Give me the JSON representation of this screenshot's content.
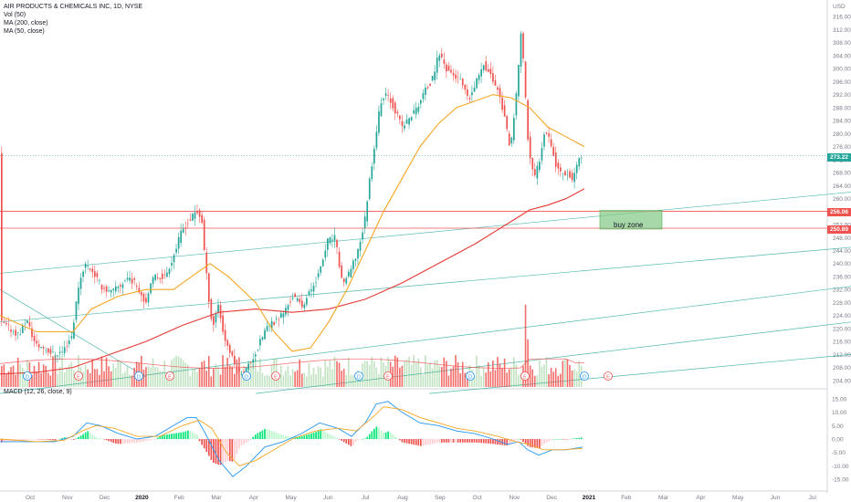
{
  "chart_data": {
    "type": "candlestick",
    "symbol_title": "AIR PRODUCTS & CHEMICALS INC, 1D, NYSE",
    "indicators": [
      "Vol (50)",
      "MA (200, close)",
      "MA (50, close)"
    ],
    "currency_label": "USD",
    "price_axis": {
      "ylim": [
        202,
        320
      ],
      "ticks": [
        "316.00",
        "312.00",
        "308.00",
        "304.00",
        "300.00",
        "296.00",
        "292.00",
        "288.00",
        "284.00",
        "280.00",
        "276.00",
        "272.00",
        "268.00",
        "264.00",
        "260.00",
        "256.00",
        "252.00",
        "248.00",
        "244.00",
        "240.00",
        "236.00",
        "232.00",
        "228.00",
        "224.00",
        "220.00",
        "216.00",
        "212.00",
        "208.00",
        "204.00"
      ]
    },
    "macd_axis": {
      "label": "MACD (12, 26, close, 9)",
      "ylim": [
        -18,
        18
      ],
      "ticks": [
        "15.00",
        "10.00",
        "5.00",
        "0.00",
        "-5.00",
        "-10.00",
        "-15.00"
      ]
    },
    "x_axis": {
      "ticks": [
        "Oct",
        "Nov",
        "Dec",
        "2020",
        "Feb",
        "Mar",
        "Apr",
        "May",
        "Jun",
        "Jul",
        "Aug",
        "Sep",
        "Oct",
        "Nov",
        "Dec",
        "2021",
        "Feb",
        "Mar",
        "Apr",
        "May",
        "Jun",
        "Jul"
      ],
      "bold_ticks": [
        "2020",
        "2021"
      ]
    },
    "last_price": "273.22",
    "horizontal_levels": [
      {
        "label": "256.06",
        "value": 256.06,
        "color": "#ef5350"
      },
      {
        "label": "250.89",
        "value": 250.89,
        "color": "#ef5350"
      }
    ],
    "annotation": {
      "text": "buy zone",
      "price_top": 256.06,
      "price_bottom": 250.89,
      "color": "#81c784"
    },
    "close_path": [
      {
        "x": 0,
        "y": 222
      },
      {
        "x": 10,
        "y": 220
      },
      {
        "x": 20,
        "y": 218
      },
      {
        "x": 28,
        "y": 223
      },
      {
        "x": 38,
        "y": 215
      },
      {
        "x": 48,
        "y": 214
      },
      {
        "x": 58,
        "y": 212
      },
      {
        "x": 68,
        "y": 213
      },
      {
        "x": 78,
        "y": 218
      },
      {
        "x": 85,
        "y": 233
      },
      {
        "x": 92,
        "y": 240
      },
      {
        "x": 100,
        "y": 238
      },
      {
        "x": 110,
        "y": 233
      },
      {
        "x": 120,
        "y": 231
      },
      {
        "x": 130,
        "y": 233
      },
      {
        "x": 140,
        "y": 236
      },
      {
        "x": 150,
        "y": 233
      },
      {
        "x": 158,
        "y": 228
      },
      {
        "x": 168,
        "y": 236
      },
      {
        "x": 180,
        "y": 236
      },
      {
        "x": 190,
        "y": 243
      },
      {
        "x": 198,
        "y": 250
      },
      {
        "x": 206,
        "y": 253
      },
      {
        "x": 214,
        "y": 256
      },
      {
        "x": 220,
        "y": 254
      },
      {
        "x": 224,
        "y": 240
      },
      {
        "x": 228,
        "y": 229
      },
      {
        "x": 232,
        "y": 220
      },
      {
        "x": 238,
        "y": 228
      },
      {
        "x": 244,
        "y": 218
      },
      {
        "x": 252,
        "y": 212
      },
      {
        "x": 260,
        "y": 206
      },
      {
        "x": 270,
        "y": 208
      },
      {
        "x": 280,
        "y": 213
      },
      {
        "x": 290,
        "y": 220
      },
      {
        "x": 300,
        "y": 222
      },
      {
        "x": 310,
        "y": 225
      },
      {
        "x": 320,
        "y": 230
      },
      {
        "x": 330,
        "y": 227
      },
      {
        "x": 340,
        "y": 232
      },
      {
        "x": 350,
        "y": 238
      },
      {
        "x": 358,
        "y": 247
      },
      {
        "x": 366,
        "y": 248
      },
      {
        "x": 374,
        "y": 234
      },
      {
        "x": 382,
        "y": 237
      },
      {
        "x": 390,
        "y": 243
      },
      {
        "x": 398,
        "y": 252
      },
      {
        "x": 404,
        "y": 266
      },
      {
        "x": 410,
        "y": 278
      },
      {
        "x": 416,
        "y": 290
      },
      {
        "x": 424,
        "y": 292
      },
      {
        "x": 432,
        "y": 287
      },
      {
        "x": 440,
        "y": 282
      },
      {
        "x": 448,
        "y": 285
      },
      {
        "x": 456,
        "y": 288
      },
      {
        "x": 464,
        "y": 293
      },
      {
        "x": 472,
        "y": 296
      },
      {
        "x": 480,
        "y": 305
      },
      {
        "x": 488,
        "y": 300
      },
      {
        "x": 496,
        "y": 298
      },
      {
        "x": 504,
        "y": 296
      },
      {
        "x": 512,
        "y": 290
      },
      {
        "x": 520,
        "y": 295
      },
      {
        "x": 528,
        "y": 302
      },
      {
        "x": 536,
        "y": 298
      },
      {
        "x": 544,
        "y": 294
      },
      {
        "x": 552,
        "y": 285
      },
      {
        "x": 558,
        "y": 274
      },
      {
        "x": 564,
        "y": 290
      },
      {
        "x": 570,
        "y": 312
      },
      {
        "x": 574,
        "y": 295
      },
      {
        "x": 578,
        "y": 275
      },
      {
        "x": 584,
        "y": 266
      },
      {
        "x": 590,
        "y": 272
      },
      {
        "x": 596,
        "y": 282
      },
      {
        "x": 602,
        "y": 278
      },
      {
        "x": 608,
        "y": 270
      },
      {
        "x": 614,
        "y": 268
      },
      {
        "x": 620,
        "y": 268
      },
      {
        "x": 626,
        "y": 266
      },
      {
        "x": 632,
        "y": 271
      },
      {
        "x": 638,
        "y": 273.22
      }
    ],
    "ma50": [
      {
        "x": 0,
        "y": 224
      },
      {
        "x": 40,
        "y": 219
      },
      {
        "x": 80,
        "y": 219
      },
      {
        "x": 100,
        "y": 226
      },
      {
        "x": 130,
        "y": 230
      },
      {
        "x": 160,
        "y": 232
      },
      {
        "x": 190,
        "y": 232
      },
      {
        "x": 220,
        "y": 238
      },
      {
        "x": 230,
        "y": 240
      },
      {
        "x": 250,
        "y": 236
      },
      {
        "x": 280,
        "y": 228
      },
      {
        "x": 300,
        "y": 219
      },
      {
        "x": 320,
        "y": 213
      },
      {
        "x": 340,
        "y": 214
      },
      {
        "x": 360,
        "y": 222
      },
      {
        "x": 380,
        "y": 232
      },
      {
        "x": 400,
        "y": 244
      },
      {
        "x": 420,
        "y": 256
      },
      {
        "x": 440,
        "y": 266
      },
      {
        "x": 460,
        "y": 276
      },
      {
        "x": 480,
        "y": 283
      },
      {
        "x": 500,
        "y": 288
      },
      {
        "x": 520,
        "y": 290
      },
      {
        "x": 540,
        "y": 292
      },
      {
        "x": 560,
        "y": 291
      },
      {
        "x": 580,
        "y": 288
      },
      {
        "x": 600,
        "y": 282
      },
      {
        "x": 620,
        "y": 279
      },
      {
        "x": 640,
        "y": 276
      }
    ],
    "ma200": [
      {
        "x": 0,
        "y": 206
      },
      {
        "x": 40,
        "y": 206.5
      },
      {
        "x": 80,
        "y": 208
      },
      {
        "x": 120,
        "y": 212
      },
      {
        "x": 160,
        "y": 216
      },
      {
        "x": 200,
        "y": 221
      },
      {
        "x": 240,
        "y": 225
      },
      {
        "x": 280,
        "y": 226
      },
      {
        "x": 320,
        "y": 225
      },
      {
        "x": 360,
        "y": 226
      },
      {
        "x": 400,
        "y": 229
      },
      {
        "x": 440,
        "y": 234
      },
      {
        "x": 480,
        "y": 240
      },
      {
        "x": 520,
        "y": 246
      },
      {
        "x": 560,
        "y": 253
      },
      {
        "x": 580,
        "y": 256.5
      },
      {
        "x": 600,
        "y": 258
      },
      {
        "x": 620,
        "y": 260
      },
      {
        "x": 640,
        "y": 263
      }
    ],
    "trendlines": [
      {
        "x1": 0,
        "y1": 237,
        "x2": 932,
        "y2": 262,
        "color": "#26a69a"
      },
      {
        "x1": 0,
        "y1": 222,
        "x2": 932,
        "y2": 245,
        "color": "#26a69a"
      },
      {
        "x1": 0,
        "y1": 200,
        "x2": 932,
        "y2": 233,
        "color": "#26a69a"
      },
      {
        "x1": 0,
        "y1": 232,
        "x2": 160,
        "y2": 205,
        "color": "#26a69a"
      },
      {
        "x1": 280,
        "y1": 200,
        "x2": 932,
        "y2": 222,
        "color": "#26a69a"
      },
      {
        "x1": 470,
        "y1": 200,
        "x2": 932,
        "y2": 212,
        "color": "#26a69a"
      }
    ],
    "volume_spikes": [
      {
        "x": 574,
        "h": 0.95
      },
      {
        "x": 578,
        "h": 0.55
      },
      {
        "x": 410,
        "h": 0.3
      },
      {
        "x": 620,
        "h": 0.32
      },
      {
        "x": 400,
        "h": 0.3
      },
      {
        "x": 250,
        "h": 0.25
      }
    ],
    "event_markers": [
      {
        "x": 30,
        "type": "D"
      },
      {
        "x": 86,
        "type": "E"
      },
      {
        "x": 152,
        "type": "D"
      },
      {
        "x": 186,
        "type": "E"
      },
      {
        "x": 270,
        "type": "D"
      },
      {
        "x": 302,
        "type": "E"
      },
      {
        "x": 393,
        "type": "D"
      },
      {
        "x": 425,
        "type": "E"
      },
      {
        "x": 515,
        "type": "D"
      },
      {
        "x": 575,
        "type": "E"
      },
      {
        "x": 640,
        "type": "D"
      },
      {
        "x": 666,
        "type": "E"
      }
    ],
    "macd_path": [
      {
        "x": 0,
        "y": -1
      },
      {
        "x": 30,
        "y": -1
      },
      {
        "x": 60,
        "y": -1
      },
      {
        "x": 80,
        "y": 1
      },
      {
        "x": 95,
        "y": 6
      },
      {
        "x": 110,
        "y": 5
      },
      {
        "x": 130,
        "y": 2
      },
      {
        "x": 150,
        "y": 0
      },
      {
        "x": 170,
        "y": 1
      },
      {
        "x": 190,
        "y": 5
      },
      {
        "x": 205,
        "y": 8
      },
      {
        "x": 215,
        "y": 8
      },
      {
        "x": 225,
        "y": 2
      },
      {
        "x": 240,
        "y": -8
      },
      {
        "x": 255,
        "y": -14
      },
      {
        "x": 270,
        "y": -10
      },
      {
        "x": 290,
        "y": -3
      },
      {
        "x": 310,
        "y": -1
      },
      {
        "x": 330,
        "y": 2
      },
      {
        "x": 350,
        "y": 6
      },
      {
        "x": 370,
        "y": 4
      },
      {
        "x": 385,
        "y": 1
      },
      {
        "x": 400,
        "y": 6
      },
      {
        "x": 412,
        "y": 13
      },
      {
        "x": 425,
        "y": 14
      },
      {
        "x": 440,
        "y": 10
      },
      {
        "x": 460,
        "y": 6
      },
      {
        "x": 480,
        "y": 5
      },
      {
        "x": 500,
        "y": 3
      },
      {
        "x": 520,
        "y": 2
      },
      {
        "x": 540,
        "y": 0
      },
      {
        "x": 556,
        "y": -2
      },
      {
        "x": 568,
        "y": -1
      },
      {
        "x": 578,
        "y": -4
      },
      {
        "x": 590,
        "y": -6
      },
      {
        "x": 605,
        "y": -4
      },
      {
        "x": 620,
        "y": -4
      },
      {
        "x": 638,
        "y": -3
      }
    ],
    "signal_path": [
      {
        "x": 0,
        "y": 0
      },
      {
        "x": 40,
        "y": -1
      },
      {
        "x": 70,
        "y": -0.5
      },
      {
        "x": 90,
        "y": 3
      },
      {
        "x": 105,
        "y": 5
      },
      {
        "x": 125,
        "y": 4
      },
      {
        "x": 150,
        "y": 1
      },
      {
        "x": 175,
        "y": 1
      },
      {
        "x": 200,
        "y": 5
      },
      {
        "x": 218,
        "y": 7
      },
      {
        "x": 232,
        "y": 4
      },
      {
        "x": 248,
        "y": -5
      },
      {
        "x": 262,
        "y": -10
      },
      {
        "x": 280,
        "y": -8
      },
      {
        "x": 300,
        "y": -4
      },
      {
        "x": 320,
        "y": 0
      },
      {
        "x": 345,
        "y": 3
      },
      {
        "x": 370,
        "y": 4
      },
      {
        "x": 390,
        "y": 3
      },
      {
        "x": 408,
        "y": 8
      },
      {
        "x": 420,
        "y": 12
      },
      {
        "x": 440,
        "y": 11
      },
      {
        "x": 460,
        "y": 8
      },
      {
        "x": 480,
        "y": 6
      },
      {
        "x": 500,
        "y": 4
      },
      {
        "x": 520,
        "y": 3
      },
      {
        "x": 545,
        "y": 1
      },
      {
        "x": 565,
        "y": -1
      },
      {
        "x": 580,
        "y": -2
      },
      {
        "x": 595,
        "y": -4
      },
      {
        "x": 615,
        "y": -4
      },
      {
        "x": 638,
        "y": -3.5
      }
    ]
  }
}
